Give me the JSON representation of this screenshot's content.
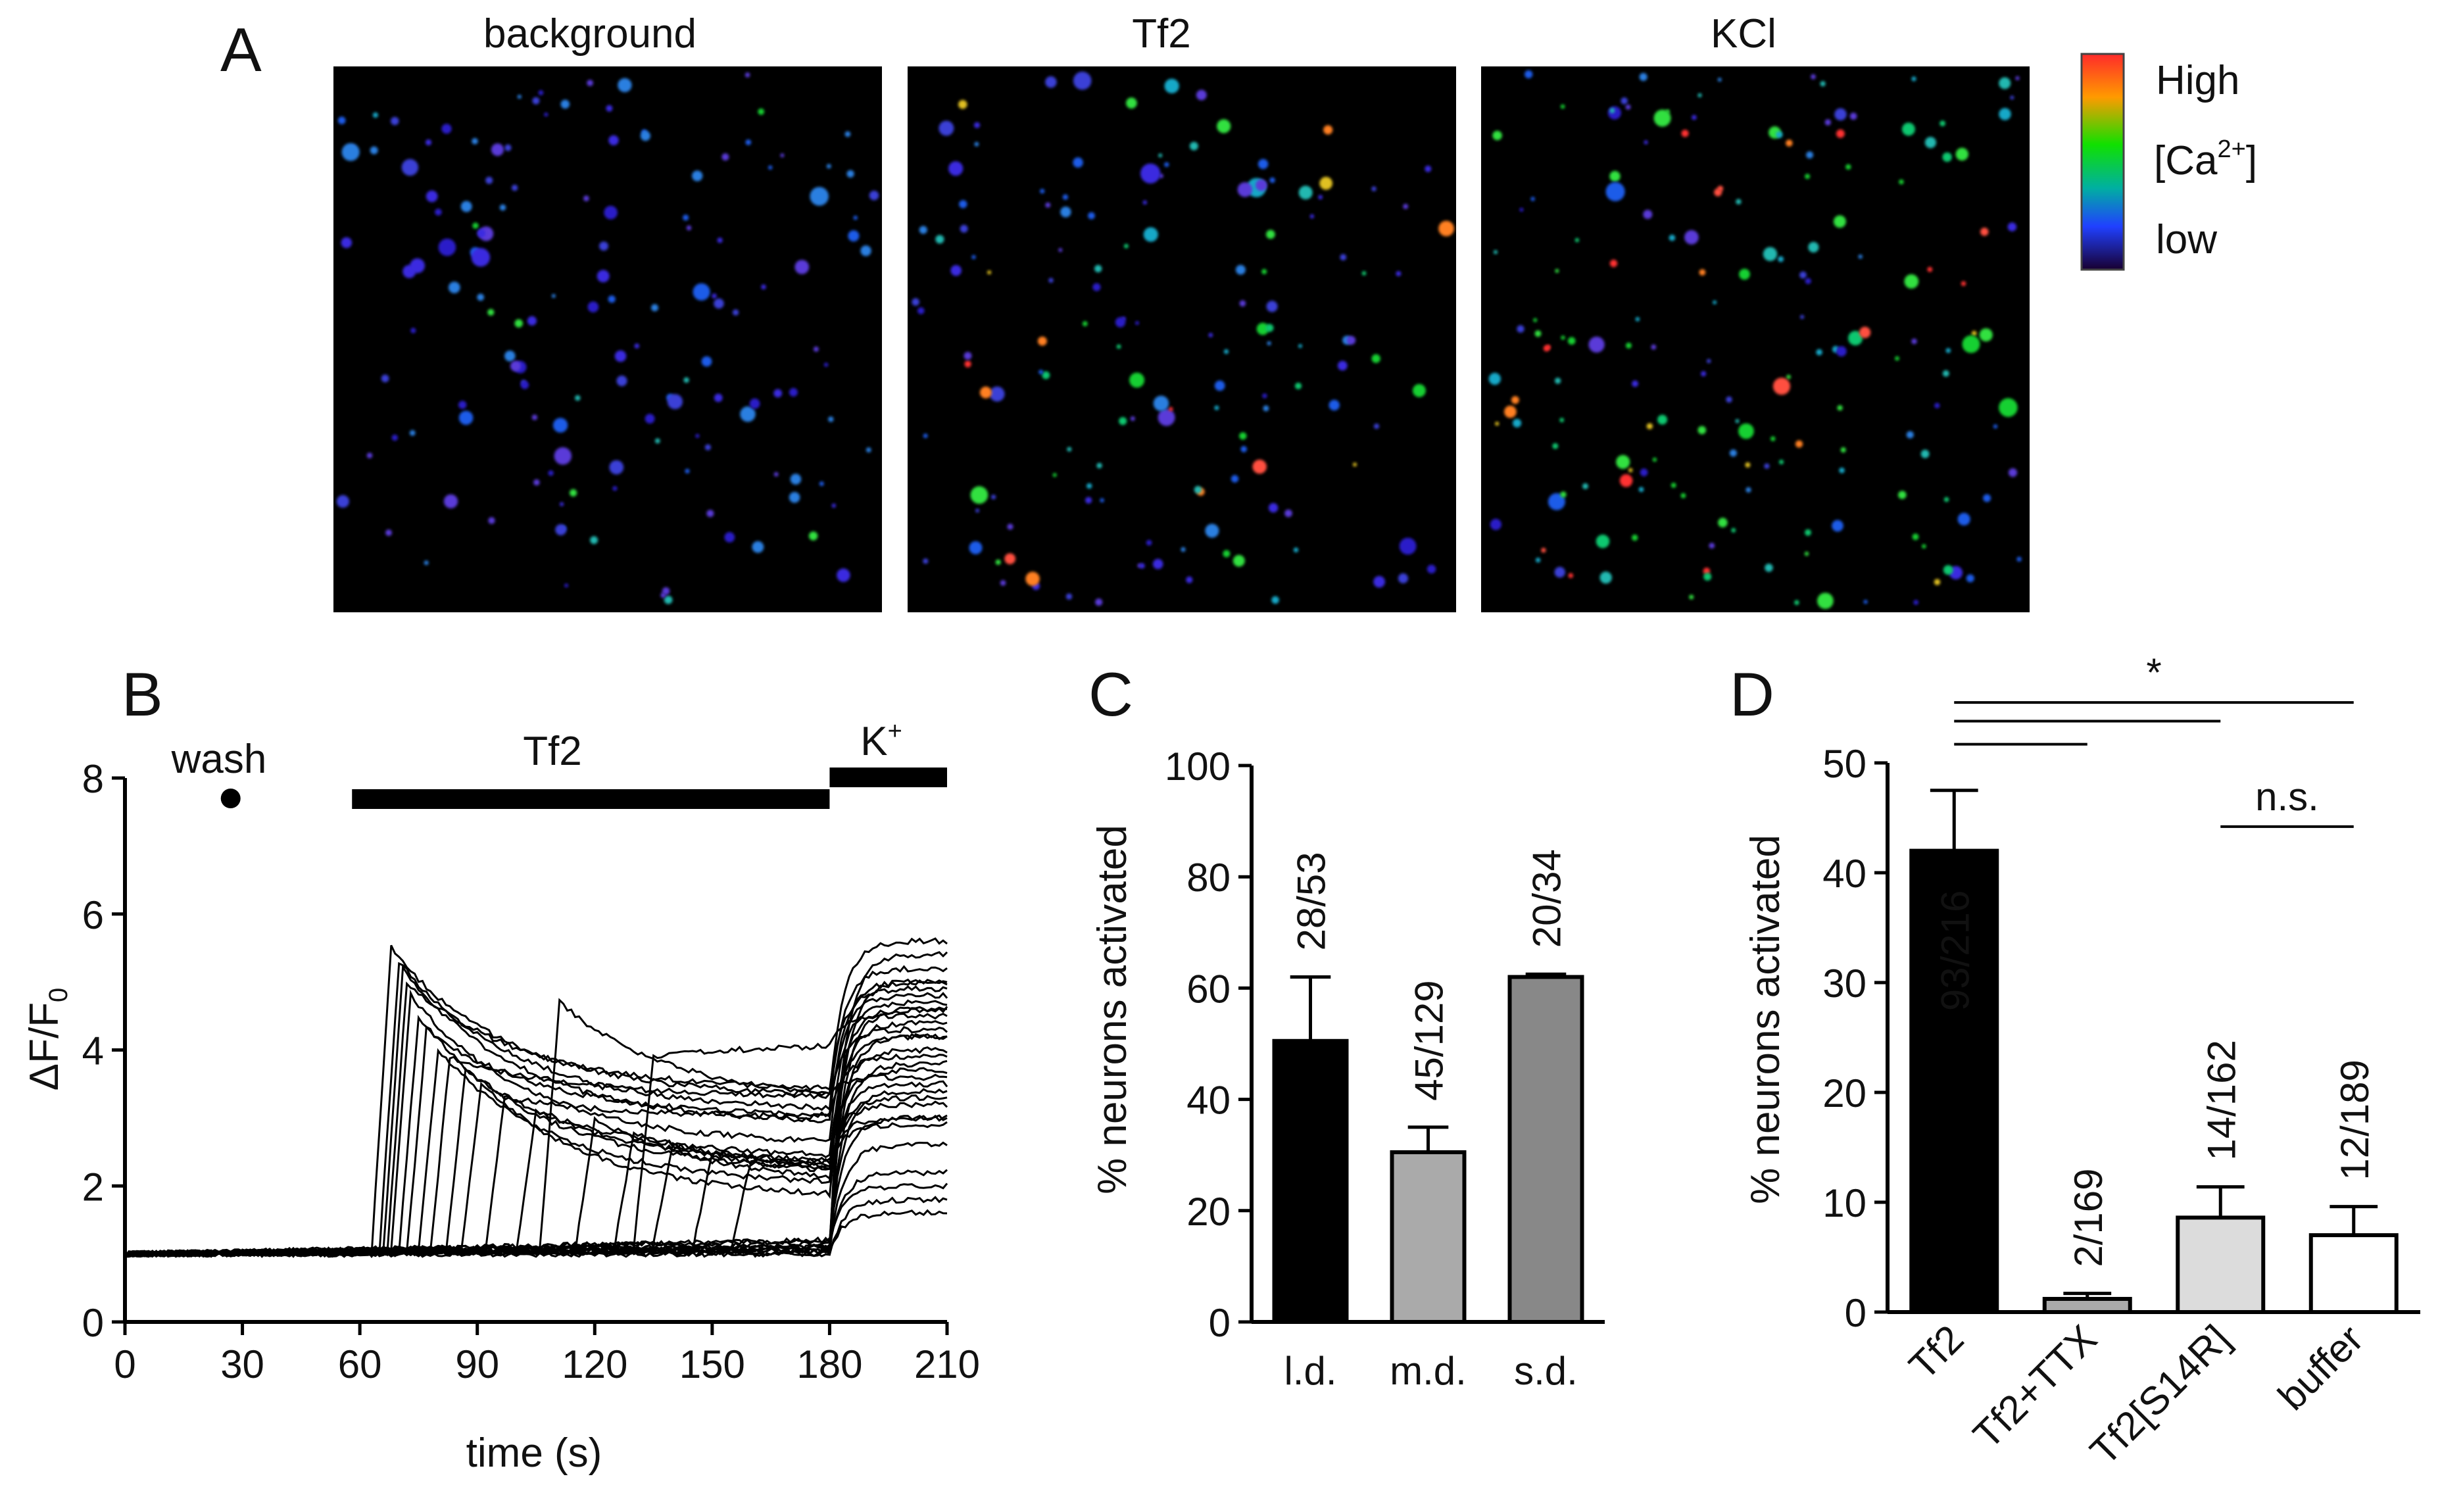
{
  "panelA": {
    "letter": "A",
    "images": [
      {
        "title": "background",
        "level": 1
      },
      {
        "title": "Tf2",
        "level": 2
      },
      {
        "title": "KCl",
        "level": 3
      }
    ],
    "colorbar": {
      "high": "High",
      "mid_main": "[Ca",
      "mid_sup": "2+",
      "mid_end": "]",
      "low": "low"
    }
  },
  "chart_data": [
    {
      "panel": "B",
      "type": "line",
      "letter": "B",
      "title": "",
      "xlabel": "time (s)",
      "ylabel_main": "ΔF/F",
      "ylabel_sub": "0",
      "xlim": [
        0,
        210
      ],
      "ylim": [
        0,
        8
      ],
      "xticks": [
        0,
        30,
        60,
        90,
        120,
        150,
        180,
        210
      ],
      "yticks": [
        0,
        2,
        4,
        6,
        8
      ],
      "annotations": {
        "wash": {
          "label": "wash",
          "time": 27,
          "value": 7.7
        },
        "tf2_bar": {
          "label": "Tf2",
          "start": 58,
          "end": 180
        },
        "k_bar": {
          "label": "K",
          "label_sup": "+",
          "start": 180,
          "end": 210
        }
      },
      "traces": [
        {
          "baseline_end": 1.05,
          "response_time": 63,
          "peak": 5.5,
          "plateau": 3.3,
          "k_level": 5.6
        },
        {
          "baseline_end": 1.1,
          "response_time": 65,
          "peak": 5.3,
          "plateau": 3.1,
          "k_level": 5.2
        },
        {
          "baseline_end": 1.15,
          "response_time": 66,
          "peak": 5.2,
          "plateau": 2.9,
          "k_level": 5.0
        },
        {
          "baseline_end": 1.05,
          "response_time": 67,
          "peak": 5.0,
          "plateau": 3.4,
          "k_level": 4.9
        },
        {
          "baseline_end": 1.2,
          "response_time": 68,
          "peak": 4.8,
          "plateau": 2.6,
          "k_level": 4.7
        },
        {
          "baseline_end": 1.1,
          "response_time": 70,
          "peak": 4.5,
          "plateau": 2.2,
          "k_level": 4.6
        },
        {
          "baseline_end": 1.0,
          "response_time": 72,
          "peak": 4.3,
          "plateau": 3.0,
          "k_level": 4.8
        },
        {
          "baseline_end": 1.15,
          "response_time": 75,
          "peak": 4.0,
          "plateau": 2.0,
          "k_level": 4.4
        },
        {
          "baseline_end": 1.05,
          "response_time": 78,
          "peak": 3.9,
          "plateau": 3.3,
          "k_level": 4.3
        },
        {
          "baseline_end": 1.1,
          "response_time": 82,
          "peak": 3.7,
          "plateau": 2.4,
          "k_level": 4.2
        },
        {
          "baseline_end": 1.2,
          "response_time": 86,
          "peak": 3.5,
          "plateau": 1.8,
          "k_level": 4.0
        },
        {
          "baseline_end": 1.05,
          "response_time": 92,
          "peak": 3.3,
          "plateau": 3.0,
          "k_level": 3.9
        },
        {
          "baseline_end": 1.1,
          "response_time": 100,
          "peak": 3.1,
          "plateau": 2.3,
          "k_level": 3.7
        },
        {
          "baseline_end": 1.15,
          "response_time": 106,
          "peak": 4.7,
          "plateau": 3.2,
          "k_level": 3.6
        },
        {
          "baseline_end": 1.05,
          "response_time": 115,
          "peak": 3.0,
          "plateau": 2.0,
          "k_level": 3.5
        },
        {
          "baseline_end": 1.1,
          "response_time": 125,
          "peak": 2.8,
          "plateau": 2.1,
          "k_level": 3.3
        },
        {
          "baseline_end": 1.2,
          "response_time": 135,
          "peak": 2.6,
          "plateau": 2.2,
          "k_level": 3.2
        },
        {
          "baseline_end": 1.05,
          "response_time": 145,
          "peak": 2.5,
          "plateau": 2.3,
          "k_level": 3.0
        },
        {
          "baseline_end": 1.1,
          "response_time": 155,
          "peak": 2.4,
          "plateau": 2.2,
          "k_level": 2.9
        },
        {
          "baseline_end": 1.15,
          "response_time": 130,
          "peak": 3.9,
          "plateau": 4.1,
          "k_level": 4.5
        },
        {
          "baseline_end": 1.05,
          "response_time": 0,
          "peak": 0,
          "plateau": 1.2,
          "k_level": 5.4
        },
        {
          "baseline_end": 1.1,
          "response_time": 0,
          "peak": 0,
          "plateau": 1.3,
          "k_level": 5.0
        },
        {
          "baseline_end": 1.0,
          "response_time": 0,
          "peak": 0,
          "plateau": 1.1,
          "k_level": 4.6
        },
        {
          "baseline_end": 1.2,
          "response_time": 0,
          "peak": 0,
          "plateau": 1.4,
          "k_level": 4.2
        },
        {
          "baseline_end": 1.05,
          "response_time": 0,
          "peak": 0,
          "plateau": 1.2,
          "k_level": 3.8
        },
        {
          "baseline_end": 1.1,
          "response_time": 0,
          "peak": 0,
          "plateau": 1.3,
          "k_level": 3.4
        },
        {
          "baseline_end": 1.15,
          "response_time": 0,
          "peak": 0,
          "plateau": 1.5,
          "k_level": 3.0
        },
        {
          "baseline_end": 1.05,
          "response_time": 0,
          "peak": 0,
          "plateau": 1.2,
          "k_level": 2.6
        },
        {
          "baseline_end": 1.1,
          "response_time": 0,
          "peak": 0,
          "plateau": 1.3,
          "k_level": 2.2
        },
        {
          "baseline_end": 1.0,
          "response_time": 0,
          "peak": 0,
          "plateau": 1.1,
          "k_level": 1.8
        },
        {
          "baseline_end": 1.2,
          "response_time": 0,
          "peak": 0,
          "plateau": 1.6,
          "k_level": 2.0
        },
        {
          "baseline_end": 1.05,
          "response_time": 0,
          "peak": 0,
          "plateau": 1.2,
          "k_level": 1.6
        }
      ]
    },
    {
      "panel": "C",
      "type": "bar",
      "letter": "C",
      "title": "",
      "xlabel": "",
      "ylabel": "% neurons activated",
      "ylim": [
        0,
        100
      ],
      "yticks": [
        0,
        20,
        40,
        60,
        80,
        100
      ],
      "categories": [
        "l.d.",
        "m.d.",
        "s.d."
      ],
      "values": [
        50.5,
        30.5,
        62
      ],
      "errors": [
        11.5,
        4.5,
        0.5
      ],
      "counts": [
        "28/53",
        "45/129",
        "20/34"
      ],
      "colors": [
        "#000000",
        "#aaaaaa",
        "#888888"
      ]
    },
    {
      "panel": "D",
      "type": "bar",
      "letter": "D",
      "title": "",
      "xlabel": "",
      "ylabel": "% neurons activated",
      "ylim": [
        0,
        50
      ],
      "yticks": [
        0,
        10,
        20,
        30,
        40,
        50
      ],
      "categories": [
        "Tf2",
        "Tf2+TTX",
        "Tf2[S14R]",
        "buffer"
      ],
      "values": [
        42,
        1.2,
        8.6,
        7
      ],
      "errors": [
        5.5,
        0.5,
        2.8,
        2.6
      ],
      "counts": [
        "93/216",
        "2/169",
        "14/162",
        "12/189"
      ],
      "colors": [
        "#000000",
        "#aaaaaa",
        "#dcdcdc",
        "#ffffff"
      ],
      "significance": [
        {
          "from": 0,
          "to": 3,
          "y": 55.5,
          "label": "*"
        },
        {
          "from": 0,
          "to": 2,
          "y": 53.8,
          "label": ""
        },
        {
          "from": 0,
          "to": 1,
          "y": 51.7,
          "label": ""
        },
        {
          "from": 2,
          "to": 3,
          "y": 44.2,
          "label": "n.s."
        }
      ]
    }
  ]
}
